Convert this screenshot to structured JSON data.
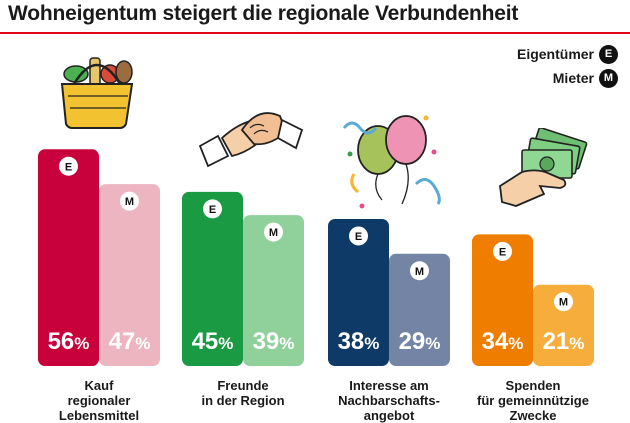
{
  "title": "Wohneigentum steigert die regionale Verbundenheit",
  "legend": [
    {
      "label": "Eigentümer",
      "badge": "E"
    },
    {
      "label": "Mieter",
      "badge": "M"
    }
  ],
  "chart_data": {
    "type": "bar",
    "categories": [
      "Kauf\nregionaler\nLebensmittel",
      "Freunde\nin der Region",
      "Interesse am\nNachbarschafts-\nangebot",
      "Spenden\nfür gemeinnützige\nZwecke"
    ],
    "series": [
      {
        "name": "Eigentümer",
        "badge": "E",
        "values": [
          56,
          45,
          38,
          34
        ]
      },
      {
        "name": "Mieter",
        "badge": "M",
        "values": [
          47,
          39,
          29,
          21
        ]
      }
    ],
    "value_suffix": "%",
    "colors": {
      "owner": [
        "#c8003c",
        "#1a9a43",
        "#0d3a66",
        "#ef7d00"
      ],
      "tenant": [
        "#ecb5c0",
        "#8fd09b",
        "#7484a5",
        "#f6ad3c"
      ]
    },
    "ylim": [
      0,
      60
    ]
  },
  "icons": [
    "food-basket-icon",
    "handshake-icon",
    "balloons-icon",
    "money-hand-icon"
  ]
}
